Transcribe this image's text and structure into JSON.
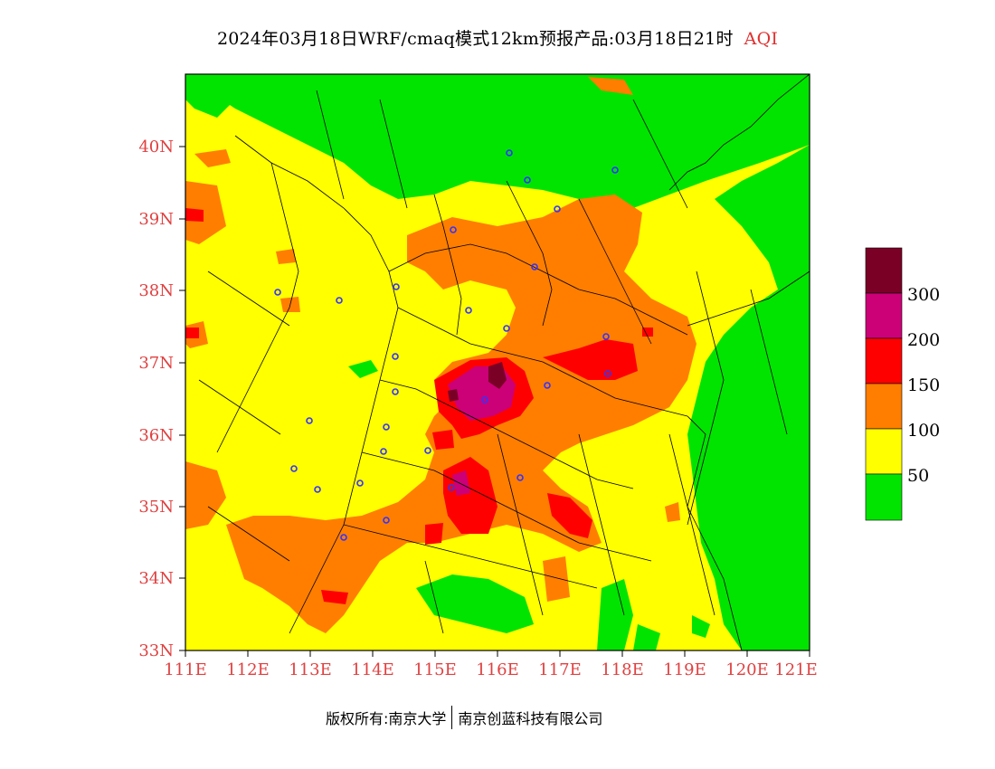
{
  "title": {
    "main": "2024年03月18日WRF/cmaq模式12km预报产品:03月18日21时",
    "suffix": "AQI"
  },
  "map": {
    "lat_labels": [
      "40N",
      "39N",
      "38N",
      "37N",
      "36N",
      "35N",
      "34N",
      "33N"
    ],
    "lon_labels": [
      "111E",
      "112E",
      "113E",
      "114E",
      "115E",
      "116E",
      "117E",
      "118E",
      "119E",
      "120E",
      "121E"
    ]
  },
  "legend": {
    "colors": [
      "#7a0026",
      "#cc0077",
      "#ff0000",
      "#ff7e00",
      "#ffff00",
      "#00e400"
    ],
    "labels": [
      "300",
      "200",
      "150",
      "100",
      "50"
    ]
  },
  "footer": {
    "copyright": "版权所有:南京大学",
    "company": "南京创蓝科技有限公司"
  }
}
